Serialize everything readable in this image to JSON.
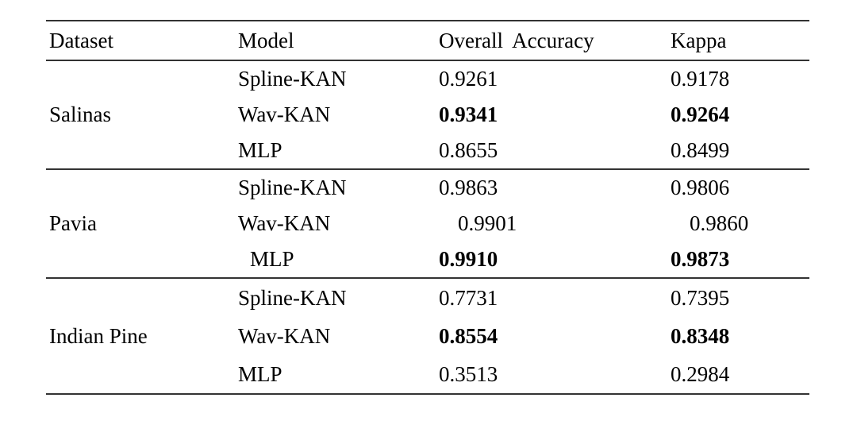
{
  "colors": {
    "text": "#000000",
    "rule": "#333333",
    "background": "#ffffff"
  },
  "table": {
    "headers": [
      "Dataset",
      "Model",
      "Overall Accuracy",
      "Kappa"
    ],
    "groups": [
      {
        "dataset": "Salinas",
        "rows": [
          {
            "model": "Spline-KAN",
            "overall_accuracy": "0.9261",
            "kappa": "0.9178",
            "values_bold": false,
            "values_indent": false,
            "model_indent": false
          },
          {
            "model": "Wav-KAN",
            "overall_accuracy": "0.9341",
            "kappa": "0.9264",
            "values_bold": true,
            "values_indent": false,
            "model_indent": false
          },
          {
            "model": "MLP",
            "overall_accuracy": "0.8655",
            "kappa": "0.8499",
            "values_bold": false,
            "values_indent": false,
            "model_indent": false
          }
        ]
      },
      {
        "dataset": "Pavia",
        "rows": [
          {
            "model": "Spline-KAN",
            "overall_accuracy": "0.9863",
            "kappa": "0.9806",
            "values_bold": false,
            "values_indent": false,
            "model_indent": false
          },
          {
            "model": "Wav-KAN",
            "overall_accuracy": "0.9901",
            "kappa": "0.9860",
            "values_bold": false,
            "values_indent": true,
            "model_indent": false
          },
          {
            "model": "MLP",
            "overall_accuracy": "0.9910",
            "kappa": "0.9873",
            "values_bold": true,
            "values_indent": false,
            "model_indent": true
          }
        ]
      },
      {
        "dataset": "Indian Pine",
        "rows": [
          {
            "model": "Spline-KAN",
            "overall_accuracy": "0.7731",
            "kappa": "0.7395",
            "values_bold": false,
            "values_indent": false,
            "model_indent": false
          },
          {
            "model": "Wav-KAN",
            "overall_accuracy": "0.8554",
            "kappa": "0.8348",
            "values_bold": true,
            "values_indent": false,
            "model_indent": false
          },
          {
            "model": "MLP",
            "overall_accuracy": "0.3513",
            "kappa": "0.2984",
            "values_bold": false,
            "values_indent": false,
            "model_indent": false
          }
        ]
      }
    ]
  }
}
